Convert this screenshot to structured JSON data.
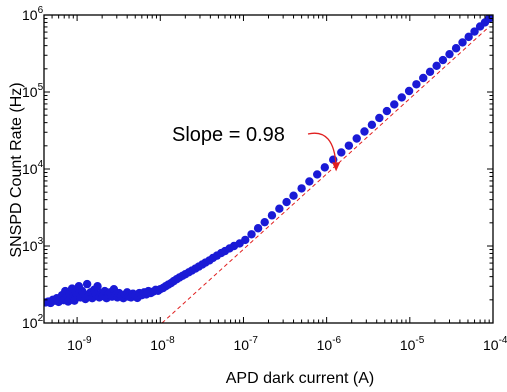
{
  "chart_data": {
    "type": "scatter",
    "xlabel": "APD dark current (A)",
    "ylabel": "SNSPD Count Rate (Hz)",
    "xscale": "log",
    "yscale": "log",
    "xlim": [
      4e-10,
      0.0001
    ],
    "ylim": [
      100,
      1000000
    ],
    "x_ticks": [
      {
        "base": "10",
        "exp": "-9",
        "value": 1e-09
      },
      {
        "base": "10",
        "exp": "-8",
        "value": 1e-08
      },
      {
        "base": "10",
        "exp": "-7",
        "value": 1e-07
      },
      {
        "base": "10",
        "exp": "-6",
        "value": 1e-06
      },
      {
        "base": "10",
        "exp": "-5",
        "value": 1e-05
      },
      {
        "base": "10",
        "exp": "-4",
        "value": 0.0001
      }
    ],
    "y_ticks": [
      {
        "base": "10",
        "exp": "2",
        "value": 100
      },
      {
        "base": "10",
        "exp": "3",
        "value": 1000
      },
      {
        "base": "10",
        "exp": "4",
        "value": 10000
      },
      {
        "base": "10",
        "exp": "5",
        "value": 100000
      },
      {
        "base": "10",
        "exp": "6",
        "value": 1000000
      }
    ],
    "grid": false,
    "marker_color": "#1a1ad6",
    "fit_color": "#e02020",
    "annotation": {
      "text": "Slope = 0.98",
      "arrow_target": [
        1.3e-06,
        8500
      ]
    },
    "fit_line": {
      "slope": 0.98,
      "x": [
        1.05e-08,
        9e-05
      ],
      "y": [
        100,
        705000
      ]
    },
    "series": [
      {
        "x": [
          4.2e-10,
          4.5e-10,
          4.8e-10,
          5.1e-10,
          5.4e-10,
          5.7e-10,
          6e-10,
          6.3e-10,
          6.6e-10,
          6.9e-10,
          7.2e-10,
          7.5e-10,
          7.8e-10,
          8.1e-10,
          8.4e-10,
          8.7e-10,
          9e-10,
          9.3e-10,
          9.6e-10,
          1e-09,
          1.05e-09,
          1.1e-09,
          1.15e-09,
          1.2e-09,
          1.26e-09,
          1.32e-09,
          1.38e-09,
          1.45e-09,
          1.52e-09,
          1.6e-09,
          1.68e-09,
          1.76e-09,
          1.85e-09,
          1.95e-09,
          2.05e-09,
          2.15e-09,
          2.26e-09,
          2.38e-09,
          2.5e-09,
          2.63e-09,
          2.77e-09,
          2.9e-09,
          3.05e-09,
          3.2e-09,
          3.4e-09,
          3.6e-09,
          3.8e-09,
          4e-09,
          4.2e-09,
          4.45e-09,
          4.7e-09,
          5e-09,
          5.3e-09,
          5.6e-09,
          6e-09,
          6.4e-09,
          6.8e-09,
          7.2e-09,
          7.7e-09,
          8.2e-09,
          8.8e-09,
          9.4e-09,
          1e-08,
          1.08e-08,
          1.16e-08,
          1.25e-08,
          1.35e-08,
          1.45e-08,
          1.57e-08,
          1.7e-08,
          1.85e-08,
          2e-08,
          2.2e-08,
          2.4e-08,
          2.65e-08,
          2.9e-08,
          3.2e-08,
          3.5e-08,
          3.9e-08,
          4.3e-08,
          4.8e-08,
          5.4e-08,
          6e-08,
          6.8e-08,
          7.7e-08,
          9e-08,
          1.05e-07,
          1.25e-07,
          1.5e-07,
          1.8e-07,
          2.2e-07,
          2.7e-07,
          3.3e-07,
          4e-07,
          5e-07,
          6.2e-07,
          7.7e-07,
          9.5e-07,
          1.2e-06,
          1.5e-06,
          1.85e-06,
          2.3e-06,
          2.85e-06,
          3.5e-06,
          4.3e-06,
          5.3e-06,
          6.5e-06,
          8e-06,
          9.8e-06,
          1.2e-05,
          1.45e-05,
          1.75e-05,
          2.1e-05,
          2.5e-05,
          3e-05,
          3.6e-05,
          4.3e-05,
          5.1e-05,
          6e-05,
          7e-05,
          8e-05,
          9e-05
        ],
        "y": [
          185,
          190,
          182,
          200,
          195,
          210,
          188,
          205,
          230,
          198,
          260,
          215,
          190,
          240,
          205,
          280,
          220,
          195,
          250,
          230,
          300,
          215,
          260,
          240,
          205,
          320,
          225,
          250,
          210,
          270,
          235,
          300,
          215,
          245,
          225,
          260,
          210,
          235,
          250,
          220,
          275,
          230,
          215,
          245,
          225,
          210,
          235,
          250,
          220,
          215,
          240,
          228,
          212,
          245,
          230,
          250,
          235,
          260,
          245,
          255,
          270,
          262,
          275,
          285,
          300,
          315,
          330,
          350,
          370,
          390,
          410,
          430,
          455,
          480,
          510,
          540,
          575,
          610,
          650,
          700,
          750,
          810,
          860,
          930,
          1000,
          1080,
          1200,
          1420,
          1700,
          2040,
          2500,
          3050,
          3720,
          4500,
          5600,
          6900,
          8500,
          10500,
          13200,
          16400,
          20100,
          24900,
          30700,
          37500,
          46000,
          56500,
          69000,
          85000,
          103000,
          126000,
          152000,
          183000,
          219000,
          260000,
          310000,
          370000,
          440000,
          520000,
          610000,
          710000,
          800000,
          900000
        ]
      }
    ]
  }
}
